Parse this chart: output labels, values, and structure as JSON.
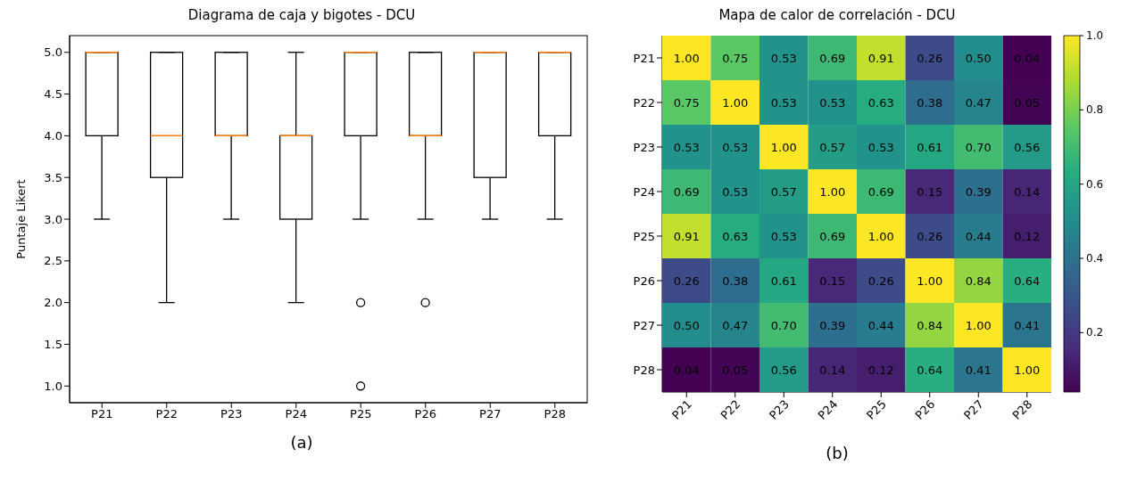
{
  "chart_data": [
    {
      "type": "box",
      "title": "Diagrama de caja y bigotes - DCU",
      "ylabel": "Puntaje Likert",
      "categories": [
        "P21",
        "P22",
        "P23",
        "P24",
        "P25",
        "P26",
        "P27",
        "P28"
      ],
      "boxes": [
        {
          "low": 3,
          "q1": 4,
          "median": 5,
          "q3": 5,
          "high": 5
        },
        {
          "low": 2,
          "q1": 3.5,
          "median": 4,
          "q3": 5,
          "high": 5
        },
        {
          "low": 3,
          "q1": 4,
          "median": 4,
          "q3": 5,
          "high": 5
        },
        {
          "low": 2,
          "q1": 3,
          "median": 4,
          "q3": 4,
          "high": 5
        },
        {
          "low": 3,
          "q1": 4,
          "median": 5,
          "q3": 5,
          "high": 5,
          "outliers": [
            2,
            1
          ]
        },
        {
          "low": 3,
          "q1": 4,
          "median": 4,
          "q3": 5,
          "high": 5,
          "outliers": [
            2
          ]
        },
        {
          "low": 3,
          "q1": 3.5,
          "median": 5,
          "q3": 5,
          "high": 5
        },
        {
          "low": 3,
          "q1": 4,
          "median": 5,
          "q3": 5,
          "high": 5
        }
      ],
      "ylim": [
        0.8,
        5.2
      ],
      "yticks": [
        {
          "value": 1,
          "label": "1.0"
        },
        {
          "value": 1.5,
          "label": "1.5"
        },
        {
          "value": 2,
          "label": "2.0"
        },
        {
          "value": 2.5,
          "label": "2.5"
        },
        {
          "value": 3,
          "label": "3.0"
        },
        {
          "value": 3.5,
          "label": "3.5"
        },
        {
          "value": 4,
          "label": "4.0"
        },
        {
          "value": 4.5,
          "label": "4.5"
        },
        {
          "value": 5,
          "label": "5.0"
        }
      ],
      "annotations": [
        "(a)"
      ]
    },
    {
      "type": "heatmap",
      "title": "Mapa de calor de correlación - DCU",
      "categories": [
        "P21",
        "P22",
        "P23",
        "P24",
        "P25",
        "P26",
        "P27",
        "P28"
      ],
      "y_categories": [
        "P21",
        "P22",
        "P23",
        "P24",
        "P25",
        "P26",
        "P27",
        "P28"
      ],
      "cells": [
        [
          1.0,
          0.75,
          0.53,
          0.69,
          0.91,
          0.26,
          0.5,
          0.04
        ],
        [
          0.75,
          1.0,
          0.53,
          0.53,
          0.63,
          0.38,
          0.47,
          0.05
        ],
        [
          0.53,
          0.53,
          1.0,
          0.57,
          0.53,
          0.61,
          0.7,
          0.56
        ],
        [
          0.69,
          0.53,
          0.57,
          1.0,
          0.69,
          0.15,
          0.39,
          0.14
        ],
        [
          0.91,
          0.63,
          0.53,
          0.69,
          1.0,
          0.26,
          0.44,
          0.12
        ],
        [
          0.26,
          0.38,
          0.61,
          0.15,
          0.26,
          1.0,
          0.84,
          0.64
        ],
        [
          0.5,
          0.47,
          0.7,
          0.39,
          0.44,
          0.84,
          1.0,
          0.41
        ],
        [
          0.04,
          0.05,
          0.56,
          0.14,
          0.12,
          0.64,
          0.41,
          1.0
        ]
      ],
      "cell_labels": [
        [
          "1.00",
          "0.75",
          "0.53",
          "0.69",
          "0.91",
          "0.26",
          "0.50",
          "0.04"
        ],
        [
          "0.75",
          "1.00",
          "0.53",
          "0.53",
          "0.63",
          "0.38",
          "0.47",
          "0.05"
        ],
        [
          "0.53",
          "0.53",
          "1.00",
          "0.57",
          "0.53",
          "0.61",
          "0.70",
          "0.56"
        ],
        [
          "0.69",
          "0.53",
          "0.57",
          "1.00",
          "0.69",
          "0.15",
          "0.39",
          "0.14"
        ],
        [
          "0.91",
          "0.63",
          "0.53",
          "0.69",
          "1.00",
          "0.26",
          "0.44",
          "0.12"
        ],
        [
          "0.26",
          "0.38",
          "0.61",
          "0.15",
          "0.26",
          "1.00",
          "0.84",
          "0.64"
        ],
        [
          "0.50",
          "0.47",
          "0.70",
          "0.39",
          "0.44",
          "0.84",
          "1.00",
          "0.41"
        ],
        [
          "0.04",
          "0.05",
          "0.56",
          "0.14",
          "0.12",
          "0.64",
          "0.41",
          "1.00"
        ]
      ],
      "clim": [
        0.04,
        1
      ],
      "cticks": [
        {
          "value": 0.2,
          "label": "0.2"
        },
        {
          "value": 0.4,
          "label": "0.4"
        },
        {
          "value": 0.6,
          "label": "0.6"
        },
        {
          "value": 0.8,
          "label": "0.8"
        },
        {
          "value": 1,
          "label": "1.0"
        }
      ],
      "annotations": [
        "(b)"
      ]
    }
  ]
}
